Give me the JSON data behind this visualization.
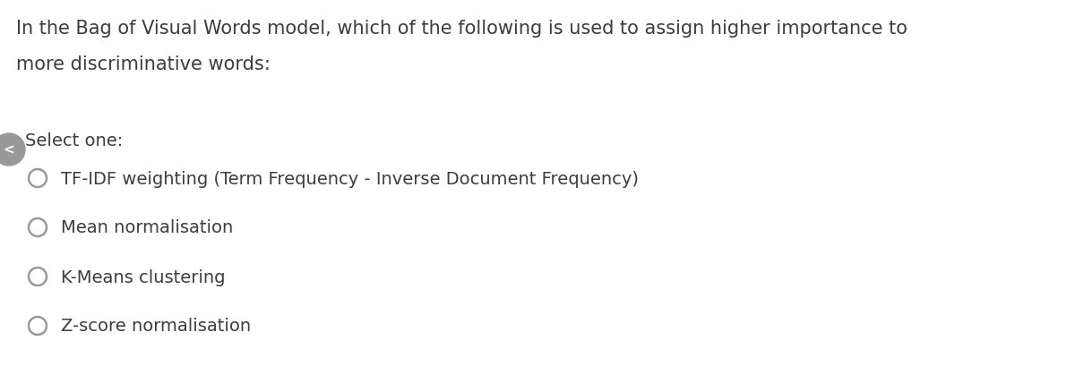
{
  "background_color": "#ffffff",
  "question_line1": "In the Bag of Visual Words model, which of the following is used to assign higher importance to",
  "question_line2": "more discriminative words:",
  "select_label": "Select one:",
  "options": [
    "TF-IDF weighting (Term Frequency - Inverse Document Frequency)",
    "Mean normalisation",
    "K-Means clustering",
    "Z-score normalisation"
  ],
  "question_fontsize": 15,
  "select_fontsize": 14,
  "option_fontsize": 14,
  "text_color": "#3d3d3d",
  "circle_edge_color": "#999999",
  "nav_button_color": "#999999",
  "fig_width": 12.0,
  "fig_height": 4.39,
  "dpi": 100
}
